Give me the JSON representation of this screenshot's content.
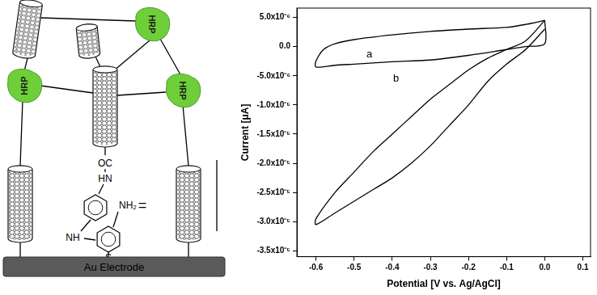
{
  "chart_data": {
    "type": "line",
    "x_label": "Potential [V vs. Ag/AgCl]",
    "y_label": "Current [μA]",
    "xlim": [
      -0.65,
      0.12
    ],
    "xticks": [
      -0.6,
      -0.5,
      -0.4,
      -0.3,
      -0.2,
      -0.1,
      {
        "value": 0,
        "label": "0.0"
      },
      0.1
    ],
    "ylim": [
      -3.6e-05,
      6.6e-06
    ],
    "yticks": [
      {
        "value": 5e-06,
        "label": "5.0x10⁻⁶"
      },
      {
        "value": 0,
        "label": "0.0"
      },
      {
        "value": -5e-06,
        "label": "-5.0x10⁻⁶"
      },
      {
        "value": -1e-05,
        "label": "-1.0x10⁻⁵"
      },
      {
        "value": -1.5e-05,
        "label": "-1.5x10⁻⁵"
      },
      {
        "value": -2e-05,
        "label": "-2.0x10⁻⁵"
      },
      {
        "value": -2.5e-05,
        "label": "-2.5x10⁻⁵"
      },
      {
        "value": -3e-05,
        "label": "-3.0x10⁻⁵"
      },
      {
        "value": -3.5e-05,
        "label": "-3.5x10⁻⁵"
      }
    ],
    "grid": false,
    "series": [
      {
        "color": "#000000",
        "x": [
          0,
          -0.05,
          -0.1,
          -0.2,
          -0.3,
          -0.4,
          -0.5,
          -0.55,
          -0.58,
          -0.6,
          -0.6,
          -0.55,
          -0.5,
          -0.4,
          -0.3,
          -0.2,
          -0.1,
          -0.05,
          0,
          0
        ],
        "values": [
          4.5e-06,
          3.8e-06,
          3.3e-06,
          3e-06,
          2.6e-06,
          2e-06,
          1.2e-06,
          5e-07,
          -5e-07,
          -2.5e-06,
          -3.5e-06,
          -3.2e-06,
          -3e-06,
          -2.6e-06,
          -2.3e-06,
          -1.5e-06,
          -5e-07,
          0,
          5e-07,
          4.5e-06
        ]
      },
      {
        "color": "#000000",
        "x": [
          0,
          -0.05,
          -0.1,
          -0.15,
          -0.2,
          -0.25,
          -0.3,
          -0.35,
          -0.4,
          -0.45,
          -0.5,
          -0.55,
          -0.6,
          -0.6,
          -0.55,
          -0.5,
          -0.45,
          -0.4,
          -0.35,
          -0.3,
          -0.25,
          -0.2,
          -0.15,
          -0.1,
          -0.05,
          0
        ],
        "values": [
          3e-06,
          -5e-07,
          -3e-06,
          -6e-06,
          -1e-05,
          -1.35e-05,
          -1.7e-05,
          -2e-05,
          -2.25e-05,
          -2.45e-05,
          -2.65e-05,
          -2.85e-05,
          -3.05e-05,
          -2.95e-05,
          -2.5e-05,
          -2.15e-05,
          -1.8e-05,
          -1.5e-05,
          -1.2e-05,
          -9e-06,
          -6.5e-06,
          -4e-06,
          -2e-06,
          -5e-07,
          1e-06,
          4.5e-06
        ]
      }
    ],
    "annotations": [
      {
        "text": "a",
        "x": -0.46,
        "y": -1.3e-06
      },
      {
        "text": "b",
        "x": -0.39,
        "y": -5.5e-06
      }
    ]
  },
  "diagram": {
    "enzymes": [
      "HRP",
      "HRP",
      "HRP"
    ],
    "linker": {
      "carbonyl": "OC",
      "amide": "HN",
      "amine": "NH",
      "amino": "NH₂",
      "thiol": "S"
    },
    "equals": "=",
    "electrode": "Au Electrode"
  }
}
